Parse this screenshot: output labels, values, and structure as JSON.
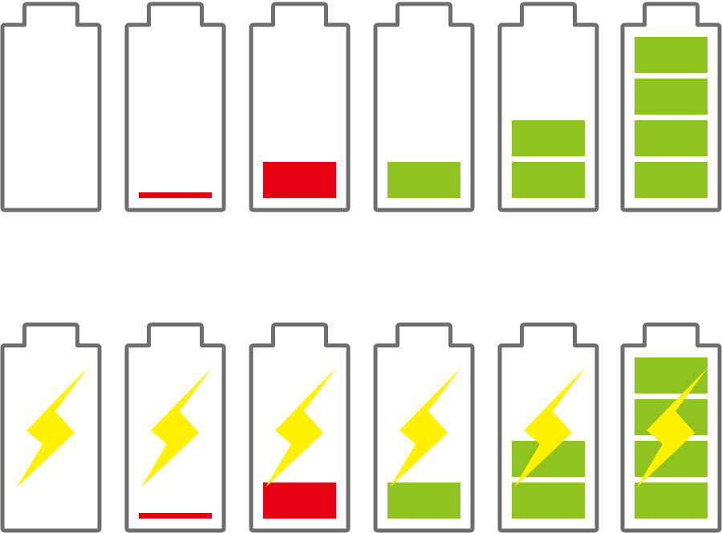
{
  "colors": {
    "outline": "#6e6e6e",
    "low": "#e60012",
    "ok": "#8fc31f",
    "bolt": "#fff100",
    "background": "#ffffff"
  },
  "rows": [
    {
      "name": "battery-row-discharging",
      "charging": false,
      "batteries": [
        {
          "level": "empty",
          "fill": "none",
          "segments": 0
        },
        {
          "level": "critical",
          "fill": "low",
          "segments": 0,
          "sliver": true
        },
        {
          "level": "low",
          "fill": "low",
          "segments": 1
        },
        {
          "level": "one-bar",
          "fill": "ok",
          "segments": 1
        },
        {
          "level": "two-bars",
          "fill": "ok",
          "segments": 2
        },
        {
          "level": "full",
          "fill": "ok",
          "segments": 4
        }
      ]
    },
    {
      "name": "battery-row-charging",
      "charging": true,
      "batteries": [
        {
          "level": "empty",
          "fill": "none",
          "segments": 0
        },
        {
          "level": "critical",
          "fill": "low",
          "segments": 0,
          "sliver": true
        },
        {
          "level": "low",
          "fill": "low",
          "segments": 1
        },
        {
          "level": "one-bar",
          "fill": "ok",
          "segments": 1
        },
        {
          "level": "two-bars",
          "fill": "ok",
          "segments": 2
        },
        {
          "level": "full",
          "fill": "ok",
          "segments": 4
        }
      ]
    }
  ]
}
